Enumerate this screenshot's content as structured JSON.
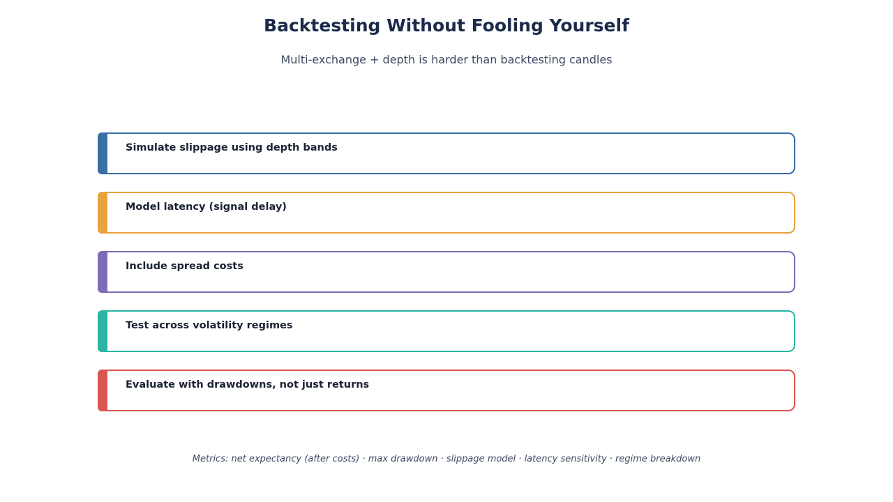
{
  "header": {
    "title": "Backtesting Without Fooling Yourself",
    "subtitle": "Multi-exchange + depth is harder than backtesting candles"
  },
  "items": [
    {
      "label": "Simulate slippage using depth bands",
      "color": "#3a6ea5"
    },
    {
      "label": "Model latency (signal delay)",
      "color": "#e8a23e"
    },
    {
      "label": "Include spread costs",
      "color": "#7d6cb5"
    },
    {
      "label": "Test across volatility regimes",
      "color": "#2bb5a2"
    },
    {
      "label": "Evaluate with drawdowns, not just returns",
      "color": "#d95650"
    }
  ],
  "footer": {
    "text": "Metrics: net expectancy (after costs) · max drawdown · slippage model · latency sensitivity · regime breakdown"
  }
}
